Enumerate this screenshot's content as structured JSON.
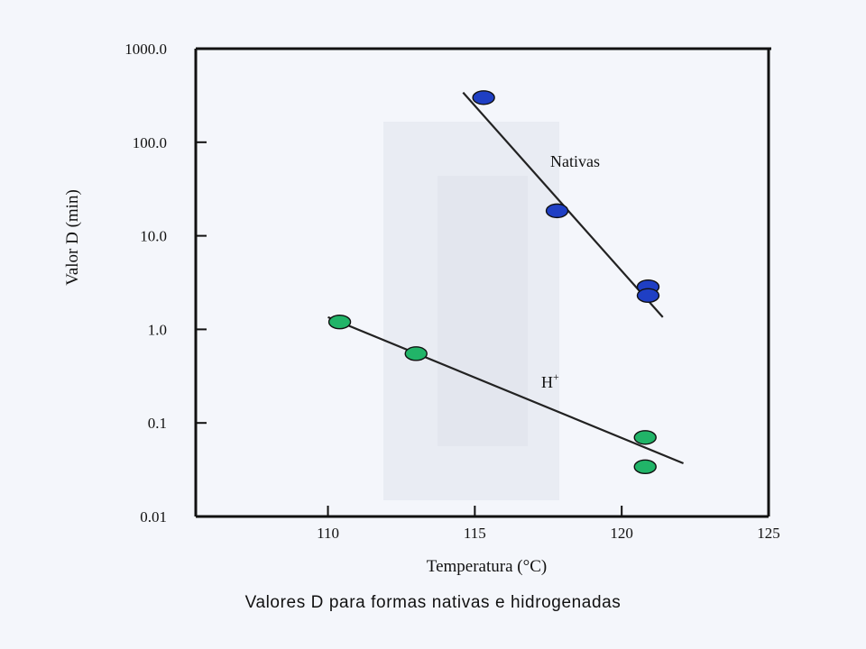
{
  "chart_data": {
    "type": "scatter",
    "xlabel": "Temperatura (°C)",
    "ylabel": "Valor D (min)",
    "yscale": "log",
    "xlim": [
      105.5,
      125
    ],
    "ylim": [
      0.01,
      1000
    ],
    "x_ticks": [
      110,
      115,
      120,
      125
    ],
    "x_tick_labels": [
      "110",
      "115",
      "120",
      "125"
    ],
    "y_ticks": [
      0.01,
      0.1,
      1,
      10,
      100,
      1000
    ],
    "y_tick_labels": [
      "0.01",
      "0.1",
      "1.0",
      "10.0",
      "100.0",
      "1000.0"
    ],
    "grid": false,
    "series": [
      {
        "name": "Nativas",
        "color": "#1f3fc4",
        "points": [
          {
            "x": 115.3,
            "y": 300
          },
          {
            "x": 117.8,
            "y": 18.5
          },
          {
            "x": 120.9,
            "y": 2.85
          },
          {
            "x": 120.9,
            "y": 2.3
          }
        ],
        "fit": [
          {
            "x": 114.6,
            "y": 340
          },
          {
            "x": 121.4,
            "y": 1.35
          }
        ]
      },
      {
        "name": "H+",
        "label_main": "H",
        "label_sup": "+",
        "color": "#21b468",
        "points": [
          {
            "x": 110.4,
            "y": 1.2
          },
          {
            "x": 113.0,
            "y": 0.55
          },
          {
            "x": 120.8,
            "y": 0.07
          },
          {
            "x": 120.8,
            "y": 0.034
          }
        ],
        "fit": [
          {
            "x": 110.0,
            "y": 1.35
          },
          {
            "x": 122.1,
            "y": 0.037
          }
        ]
      }
    ]
  },
  "caption": "Valores D para formas nativas e hidrogenadas"
}
